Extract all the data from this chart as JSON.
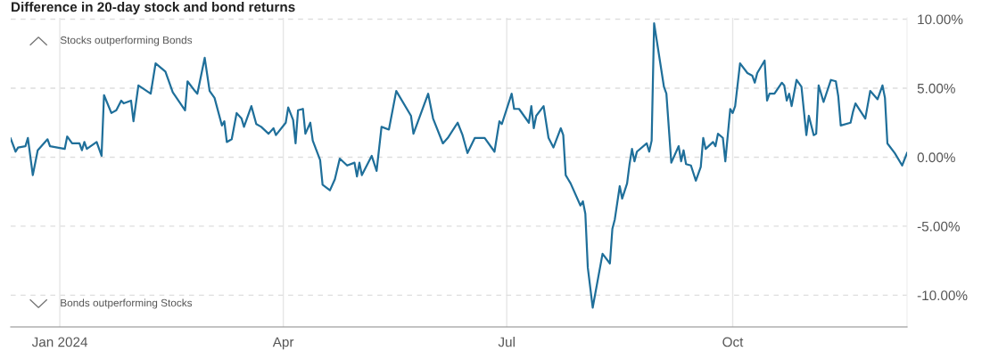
{
  "chart_data": {
    "type": "line",
    "title": "Difference in 20-day stock and bond returns",
    "annotations": [
      "Stocks outperforming Bonds",
      "Bonds outperforming Stocks"
    ],
    "x": [
      "2023-12-12",
      "2023-12-14",
      "2023-12-15",
      "2023-12-18",
      "2023-12-19",
      "2023-12-21",
      "2023-12-23",
      "2023-12-27",
      "2023-12-28",
      "2024-01-03",
      "2024-01-04",
      "2024-01-06",
      "2024-01-09",
      "2024-01-10",
      "2024-01-11",
      "2024-01-12",
      "2024-01-16",
      "2024-01-18",
      "2024-01-19",
      "2024-01-22",
      "2024-01-24",
      "2024-01-26",
      "2024-01-27",
      "2024-01-30",
      "2024-01-31",
      "2024-02-02",
      "2024-02-07",
      "2024-02-09",
      "2024-02-13",
      "2024-02-16",
      "2024-02-21",
      "2024-02-22",
      "2024-02-25",
      "2024-02-26",
      "2024-02-29",
      "2024-03-02",
      "2024-03-04",
      "2024-03-07",
      "2024-03-08",
      "2024-03-09",
      "2024-03-11",
      "2024-03-13",
      "2024-03-15",
      "2024-03-16",
      "2024-03-19",
      "2024-03-21",
      "2024-03-23",
      "2024-03-26",
      "2024-03-28",
      "2024-03-29",
      "2024-04-02",
      "2024-04-03",
      "2024-04-05",
      "2024-04-06",
      "2024-04-07",
      "2024-04-09",
      "2024-04-10",
      "2024-04-12",
      "2024-04-13",
      "2024-04-16",
      "2024-04-17",
      "2024-04-20",
      "2024-04-22",
      "2024-04-24",
      "2024-04-27",
      "2024-04-30",
      "2024-05-01",
      "2024-05-02",
      "2024-05-03",
      "2024-05-07",
      "2024-05-09",
      "2024-05-11",
      "2024-05-14",
      "2024-05-17",
      "2024-05-23",
      "2024-05-24",
      "2024-05-30",
      "2024-06-01",
      "2024-06-05",
      "2024-06-07",
      "2024-06-11",
      "2024-06-13",
      "2024-06-15",
      "2024-06-18",
      "2024-06-22",
      "2024-06-26",
      "2024-06-28",
      "2024-06-29",
      "2024-07-03",
      "2024-07-04",
      "2024-07-06",
      "2024-07-10",
      "2024-07-11",
      "2024-07-12",
      "2024-07-13",
      "2024-07-16",
      "2024-07-18",
      "2024-07-20",
      "2024-07-23",
      "2024-07-24",
      "2024-07-25",
      "2024-07-26",
      "2024-07-27",
      "2024-07-31",
      "2024-08-01",
      "2024-08-02",
      "2024-08-03",
      "2024-08-05",
      "2024-08-09",
      "2024-08-12",
      "2024-08-13",
      "2024-08-14",
      "2024-08-16",
      "2024-08-17",
      "2024-08-19",
      "2024-08-20",
      "2024-08-21",
      "2024-08-22",
      "2024-08-23",
      "2024-08-27",
      "2024-08-28",
      "2024-08-29",
      "2024-08-30",
      "2024-09-03",
      "2024-09-04",
      "2024-09-06",
      "2024-09-09",
      "2024-09-10",
      "2024-09-11",
      "2024-09-12",
      "2024-09-14",
      "2024-09-16",
      "2024-09-18",
      "2024-09-19",
      "2024-09-20",
      "2024-09-23",
      "2024-09-24",
      "2024-09-25",
      "2024-09-27",
      "2024-09-28",
      "2024-09-30",
      "2024-10-01",
      "2024-10-02",
      "2024-10-04",
      "2024-10-07",
      "2024-10-09",
      "2024-10-10",
      "2024-10-11",
      "2024-10-14",
      "2024-10-15",
      "2024-10-16",
      "2024-10-18",
      "2024-10-21",
      "2024-10-22",
      "2024-10-23",
      "2024-10-24",
      "2024-10-25",
      "2024-10-27",
      "2024-10-29",
      "2024-10-31",
      "2024-11-01",
      "2024-11-03",
      "2024-11-04",
      "2024-11-05",
      "2024-11-07",
      "2024-11-10",
      "2024-11-12",
      "2024-11-13",
      "2024-11-14",
      "2024-11-18",
      "2024-11-19",
      "2024-11-20",
      "2024-11-24",
      "2024-11-26",
      "2024-11-29",
      "2024-12-01",
      "2024-12-02",
      "2024-12-03",
      "2024-12-06",
      "2024-12-09",
      "2024-12-11"
    ],
    "series": [
      {
        "color": "#1f6f9a",
        "values": [
          1.35,
          0.4,
          0.7,
          0.8,
          1.4,
          -1.3,
          0.5,
          1.3,
          0.8,
          0.6,
          1.5,
          1.0,
          1.0,
          0.5,
          1.1,
          0.6,
          1.1,
          0.1,
          4.5,
          3.2,
          3.4,
          4.1,
          3.9,
          4.1,
          2.6,
          5.2,
          4.6,
          6.8,
          6.2,
          4.7,
          3.4,
          5.5,
          4.8,
          4.6,
          7.2,
          4.8,
          4.3,
          2.3,
          2.6,
          1.1,
          1.3,
          3.2,
          2.8,
          2.2,
          3.7,
          2.4,
          2.2,
          1.7,
          2.1,
          1.6,
          2.5,
          3.6,
          2.7,
          1.0,
          3.4,
          3.5,
          1.7,
          2.5,
          1.2,
          -0.2,
          -2.0,
          -2.4,
          -1.6,
          -0.1,
          -0.6,
          -0.4,
          -1.4,
          -0.4,
          -1.3,
          0.1,
          -1.0,
          2.2,
          2.0,
          4.8,
          3.0,
          1.7,
          4.6,
          2.8,
          1.0,
          1.4,
          2.5,
          1.6,
          0.3,
          1.4,
          1.4,
          0.4,
          2.6,
          2.4,
          4.6,
          3.5,
          3.5,
          2.5,
          3.7,
          2.1,
          3.0,
          3.7,
          1.4,
          0.7,
          2.1,
          1.6,
          -1.3,
          -1.6,
          -1.9,
          -3.5,
          -3.2,
          -4.1,
          -8.0,
          -10.9,
          -7.0,
          -7.7,
          -5.2,
          -4.5,
          -2.1,
          -3.0,
          -1.9,
          -0.5,
          0.6,
          -0.3,
          0.4,
          1.0,
          0.4,
          1.2,
          9.7,
          5.1,
          4.6,
          -0.4,
          0.8,
          -0.3,
          0.5,
          -0.5,
          -0.6,
          -1.7,
          -0.7,
          1.4,
          0.6,
          1.1,
          0.8,
          1.7,
          1.4,
          -0.3,
          3.5,
          3.2,
          3.7,
          6.8,
          6.1,
          5.9,
          5.4,
          6.1,
          7.0,
          4.1,
          4.6,
          4.6,
          5.4,
          5.2,
          4.1,
          4.6,
          3.7,
          5.6,
          5.1,
          1.6,
          3.0,
          1.6,
          1.7,
          5.2,
          4.0,
          5.6,
          5.5,
          4.4,
          2.3,
          2.5,
          3.3,
          3.9,
          2.8,
          4.8,
          4.2,
          5.2,
          4.3,
          1.0,
          0.3,
          -0.6,
          0.3
        ]
      }
    ],
    "xlim": [
      "2023-12-12",
      "2024-12-11"
    ],
    "xticks": [
      {
        "value": "2024-01-01",
        "label": "Jan 2024"
      },
      {
        "value": "2024-04-01",
        "label": "Apr"
      },
      {
        "value": "2024-07-01",
        "label": "Jul"
      },
      {
        "value": "2024-10-01",
        "label": "Oct"
      }
    ],
    "ylim": [
      -12.3,
      10.1
    ],
    "yticks": [
      {
        "value": 10,
        "label": "10.00%"
      },
      {
        "value": 5,
        "label": "5.00%"
      },
      {
        "value": 0,
        "label": "0.00%"
      },
      {
        "value": -5,
        "label": "-5.00%"
      },
      {
        "value": -10,
        "label": "-10.00%"
      }
    ],
    "grid": true,
    "marker": "none",
    "line_style": "solid"
  }
}
